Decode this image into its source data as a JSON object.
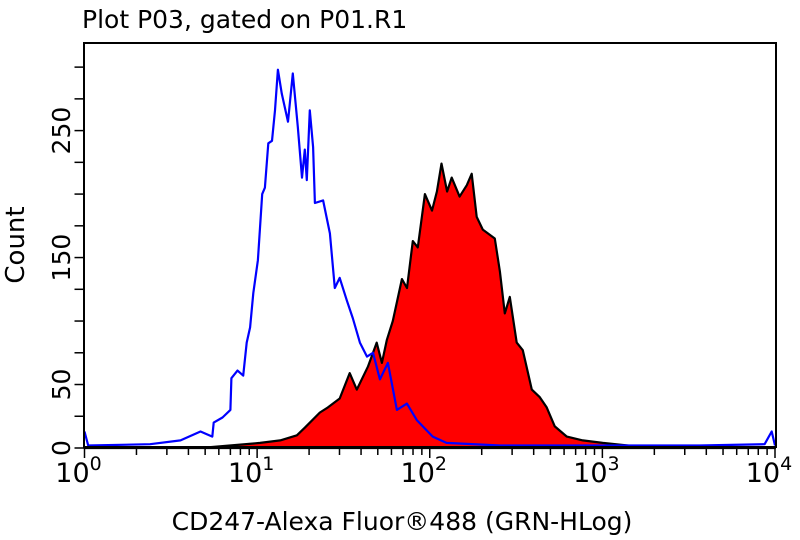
{
  "chart_data": {
    "type": "area",
    "title": "Plot P03, gated on P01.R1",
    "xlabel": "CD247-Alexa Fluor®488 (GRN-HLog)",
    "ylabel": "Count",
    "xscale": "log",
    "xlim": [
      1,
      10000
    ],
    "ylim": [
      0,
      319
    ],
    "x_ticks": [
      {
        "base": "10",
        "exp": "0",
        "value": 1
      },
      {
        "base": "10",
        "exp": "1",
        "value": 10
      },
      {
        "base": "10",
        "exp": "2",
        "value": 100
      },
      {
        "base": "10",
        "exp": "3",
        "value": 1000
      },
      {
        "base": "10",
        "exp": "4",
        "value": 10000
      }
    ],
    "y_tick_labels": [
      {
        "label": "0",
        "value": 0
      },
      {
        "label": "50",
        "value": 50
      },
      {
        "label": "150",
        "value": 150
      },
      {
        "label": "250",
        "value": 250
      }
    ],
    "y_minor_step": 25,
    "grid": false,
    "series": [
      {
        "style": "filled",
        "fill": "#ff0000",
        "stroke": "#000000",
        "x": [
          1,
          4.7,
          10.4,
          13.6,
          17.0,
          18.9,
          23.1,
          25.7,
          30.1,
          34.4,
          37.8,
          43.8,
          49.3,
          52.8,
          56.4,
          61.1,
          69.0,
          73.8,
          79.8,
          85.3,
          93.7,
          103,
          110,
          117,
          126,
          134,
          149,
          164,
          175,
          187,
          203,
          238,
          255,
          272,
          291,
          319,
          346,
          390,
          434,
          476,
          530,
          622,
          770,
          1005,
          1648,
          3664,
          10000
        ],
        "y": [
          0,
          0,
          4,
          6,
          10,
          16,
          28,
          32,
          39,
          59,
          46,
          64,
          83,
          67,
          85,
          100,
          133,
          126,
          163,
          158,
          200,
          187,
          202,
          224,
          202,
          213,
          198,
          207,
          216,
          182,
          172,
          165,
          139,
          106,
          119,
          83,
          77,
          46,
          40,
          32,
          17,
          9,
          6,
          4,
          1,
          0,
          0
        ]
      },
      {
        "style": "line",
        "stroke": "#0000ff",
        "x": [
          1,
          1.05,
          2.4,
          3.6,
          4.7,
          5.5,
          5.6,
          6.3,
          7.0,
          7.1,
          7.7,
          8.3,
          8.7,
          9.1,
          9.5,
          10.1,
          10.7,
          11.1,
          11.6,
          12.2,
          12.7,
          13.2,
          13.9,
          15.1,
          16.1,
          17.2,
          18.2,
          18.9,
          19.4,
          20.2,
          21.1,
          21.6,
          24.1,
          26.4,
          28.2,
          30.1,
          33.1,
          35.9,
          39.4,
          43.3,
          46.9,
          51.4,
          57.2,
          64.5,
          73.7,
          84.1,
          104,
          125,
          255,
          966,
          3664,
          8710,
          9570,
          10000
        ],
        "y": [
          13,
          2,
          3,
          6,
          13,
          9,
          20,
          24,
          30,
          55,
          61,
          57,
          83,
          95,
          122,
          148,
          200,
          205,
          240,
          242,
          266,
          298,
          279,
          257,
          295,
          253,
          213,
          235,
          211,
          266,
          237,
          193,
          195,
          169,
          126,
          134,
          116,
          102,
          83,
          72,
          75,
          54,
          67,
          30,
          35,
          22,
          9,
          4,
          2,
          2,
          2,
          3,
          13,
          2
        ]
      }
    ]
  }
}
